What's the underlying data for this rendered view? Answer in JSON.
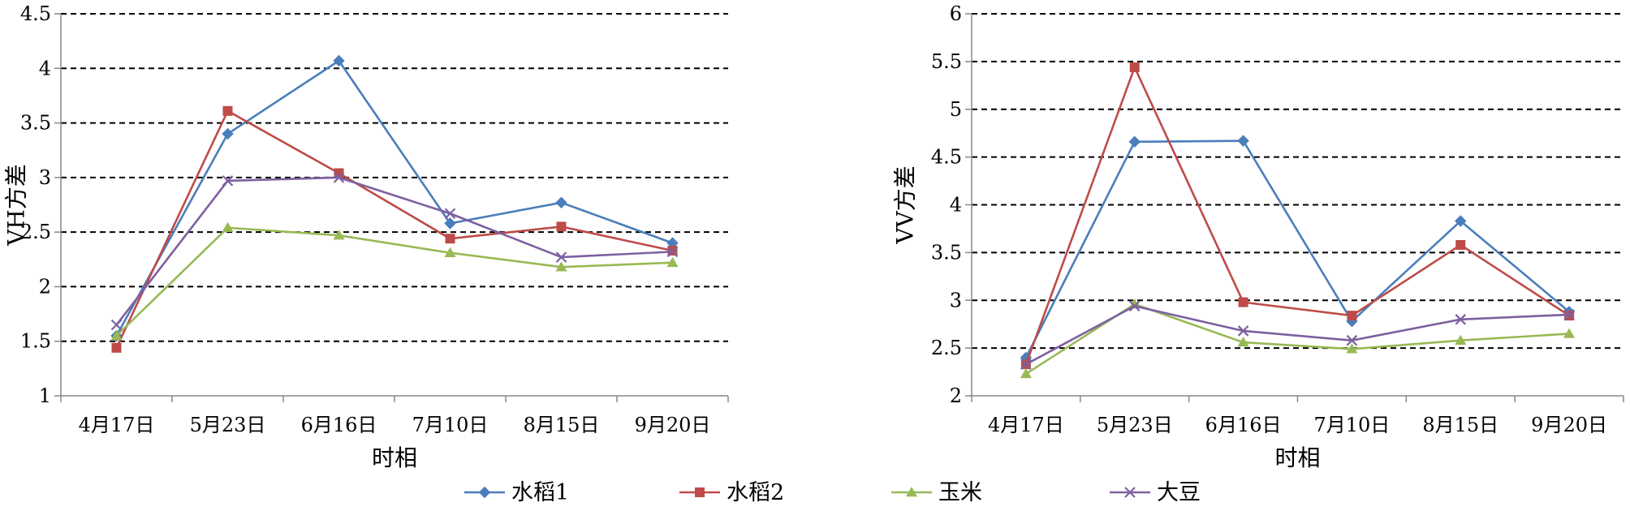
{
  "chart_data": [
    {
      "type": "line",
      "title": "",
      "xlabel": "时相",
      "ylabel": "VH方差",
      "ylim": [
        1,
        4.5
      ],
      "ytick_step": 0.5,
      "yticks": [
        "1",
        "1.5",
        "2",
        "2.5",
        "3",
        "3.5",
        "4",
        "4.5"
      ],
      "grid": true,
      "categories": [
        "4月17日",
        "5月23日",
        "6月16日",
        "7月10日",
        "8月15日",
        "9月20日"
      ],
      "series": [
        {
          "name": "水稻1",
          "color": "#4a7ebb",
          "marker": "diamond",
          "values": [
            1.55,
            3.4,
            4.07,
            2.58,
            2.77,
            2.4
          ]
        },
        {
          "name": "水稻2",
          "color": "#be4b48",
          "marker": "square",
          "values": [
            1.44,
            3.61,
            3.04,
            2.44,
            2.55,
            2.33
          ]
        },
        {
          "name": "玉米",
          "color": "#98b954",
          "marker": "triangle",
          "values": [
            1.55,
            2.54,
            2.47,
            2.31,
            2.18,
            2.22
          ]
        },
        {
          "name": "大豆",
          "color": "#7d60a0",
          "marker": "x",
          "values": [
            1.65,
            2.97,
            3.0,
            2.67,
            2.27,
            2.32
          ]
        }
      ]
    },
    {
      "type": "line",
      "title": "",
      "xlabel": "时相",
      "ylabel": "VV方差",
      "ylim": [
        2,
        6
      ],
      "ytick_step": 0.5,
      "yticks": [
        "2",
        "2.5",
        "3",
        "3.5",
        "4",
        "4.5",
        "5",
        "5.5",
        "6"
      ],
      "grid": true,
      "categories": [
        "4月17日",
        "5月23日",
        "6月16日",
        "7月10日",
        "8月15日",
        "9月20日"
      ],
      "series": [
        {
          "name": "水稻1",
          "color": "#4a7ebb",
          "marker": "diamond",
          "values": [
            2.4,
            4.66,
            4.67,
            2.78,
            3.83,
            2.88
          ]
        },
        {
          "name": "水稻2",
          "color": "#be4b48",
          "marker": "square",
          "values": [
            2.33,
            5.44,
            2.98,
            2.84,
            3.58,
            2.84
          ]
        },
        {
          "name": "玉米",
          "color": "#98b954",
          "marker": "triangle",
          "values": [
            2.23,
            2.96,
            2.56,
            2.49,
            2.58,
            2.65
          ]
        },
        {
          "name": "大豆",
          "color": "#7d60a0",
          "marker": "x",
          "values": [
            2.33,
            2.94,
            2.68,
            2.58,
            2.8,
            2.85
          ]
        }
      ]
    }
  ],
  "legend": {
    "placement": "bottom-center",
    "items": [
      {
        "label": "水稻1",
        "color": "#4a7ebb",
        "marker": "diamond"
      },
      {
        "label": "水稻2",
        "color": "#be4b48",
        "marker": "square"
      },
      {
        "label": "玉米",
        "color": "#98b954",
        "marker": "triangle"
      },
      {
        "label": "大豆",
        "color": "#7d60a0",
        "marker": "x"
      }
    ]
  }
}
